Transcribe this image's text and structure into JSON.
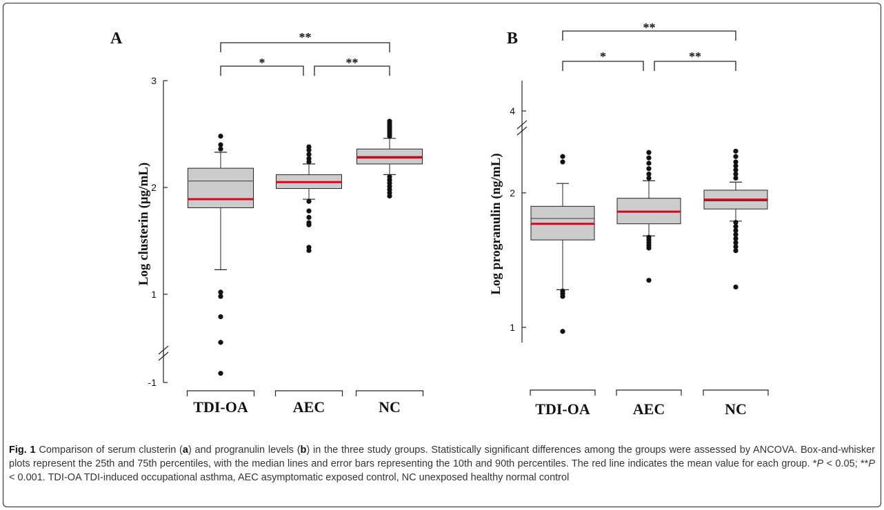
{
  "caption": {
    "fig_label": "Fig. 1",
    "parts": [
      {
        "t": " Comparison of serum clusterin ("
      },
      {
        "t": "a",
        "style": "b"
      },
      {
        "t": ") and progranulin levels ("
      },
      {
        "t": "b",
        "style": "b"
      },
      {
        "t": ") in the three study groups. Statistically significant differences among the groups were assessed by ANCOVA. Box-and-whisker plots represent the 25th and 75th percentiles, with the median lines and error bars representing the 10th and 90th percentiles. The red line indicates the mean value for each group. *"
      },
      {
        "t": "P",
        "style": "i"
      },
      {
        "t": " < 0.05; **"
      },
      {
        "t": "P",
        "style": "i"
      },
      {
        "t": " < 0.001. TDI-OA TDI-induced occupational asthma, AEC asymptomatic exposed control, NC unexposed healthy normal control"
      }
    ]
  },
  "chart_data": [
    {
      "panel": "A",
      "type": "box",
      "ylabel": "Log clusterin (μg/mL)",
      "categories": [
        "TDI-OA",
        "AEC",
        "NC"
      ],
      "y_ticks": [
        {
          "label": "3",
          "value": 3
        },
        {
          "label": "2",
          "value": 2
        },
        {
          "label": "1",
          "value": 1
        },
        {
          "label": "-1",
          "value": -1
        }
      ],
      "axis_break": {
        "lower": -1,
        "upper": 0.25
      },
      "boxes": [
        {
          "category": "TDI-OA",
          "p10": 1.23,
          "q1": 1.81,
          "median": 2.06,
          "q3": 2.18,
          "p90": 2.33,
          "mean": 1.89,
          "outliers": [
            2.36,
            2.4,
            2.48,
            1.02,
            0.98,
            0.79,
            0.55,
            0.26
          ]
        },
        {
          "category": "AEC",
          "p10": 1.89,
          "q1": 1.99,
          "median": 2.05,
          "q3": 2.12,
          "p90": 2.22,
          "mean": 2.05,
          "outliers": [
            2.24,
            2.27,
            2.31,
            2.35,
            2.38,
            1.87,
            1.78,
            1.72,
            1.67,
            1.65,
            1.44,
            1.41
          ]
        },
        {
          "category": "NC",
          "p10": 2.12,
          "q1": 2.22,
          "median": 2.29,
          "q3": 2.36,
          "p90": 2.46,
          "mean": 2.28,
          "outliers": [
            2.48,
            2.5,
            2.52,
            2.54,
            2.56,
            2.58,
            2.6,
            2.62,
            2.1,
            2.07,
            2.04,
            2.01,
            1.98,
            1.95,
            1.92
          ]
        }
      ],
      "significance": [
        {
          "from": "TDI-OA",
          "to": "AEC",
          "label": "*"
        },
        {
          "from": "AEC",
          "to": "NC",
          "label": "**"
        },
        {
          "from": "TDI-OA",
          "to": "NC",
          "label": "**"
        }
      ]
    },
    {
      "panel": "B",
      "type": "box",
      "ylabel": "Log progranulin (ng/mL)",
      "categories": [
        "TDI-OA",
        "AEC",
        "NC"
      ],
      "y_ticks": [
        {
          "label": "4",
          "value": 4
        },
        {
          "label": "2",
          "value": 2
        },
        {
          "label": "1",
          "value": 1
        }
      ],
      "axis_break": {
        "lower": 2.45,
        "upper": 3.8
      },
      "boxes": [
        {
          "category": "TDI-OA",
          "p10": 1.28,
          "q1": 1.65,
          "median": 1.81,
          "q3": 1.9,
          "p90": 2.07,
          "mean": 1.77,
          "outliers": [
            2.27,
            2.23,
            1.27,
            1.25,
            1.23,
            0.97
          ]
        },
        {
          "category": "AEC",
          "p10": 1.68,
          "q1": 1.77,
          "median": 1.86,
          "q3": 1.96,
          "p90": 2.09,
          "mean": 1.86,
          "outliers": [
            2.3,
            2.26,
            2.22,
            2.18,
            2.14,
            2.11,
            1.67,
            1.65,
            1.63,
            1.61,
            1.59,
            1.35
          ]
        },
        {
          "category": "NC",
          "p10": 1.79,
          "q1": 1.88,
          "median": 1.94,
          "q3": 2.02,
          "p90": 2.08,
          "mean": 1.95,
          "outliers": [
            2.31,
            2.27,
            2.23,
            2.2,
            2.17,
            2.14,
            2.11,
            1.78,
            1.75,
            1.72,
            1.69,
            1.66,
            1.63,
            1.6,
            1.57,
            1.3
          ]
        }
      ],
      "significance": [
        {
          "from": "TDI-OA",
          "to": "AEC",
          "label": "*"
        },
        {
          "from": "AEC",
          "to": "NC",
          "label": "**"
        },
        {
          "from": "TDI-OA",
          "to": "NC",
          "label": "**"
        }
      ]
    }
  ]
}
